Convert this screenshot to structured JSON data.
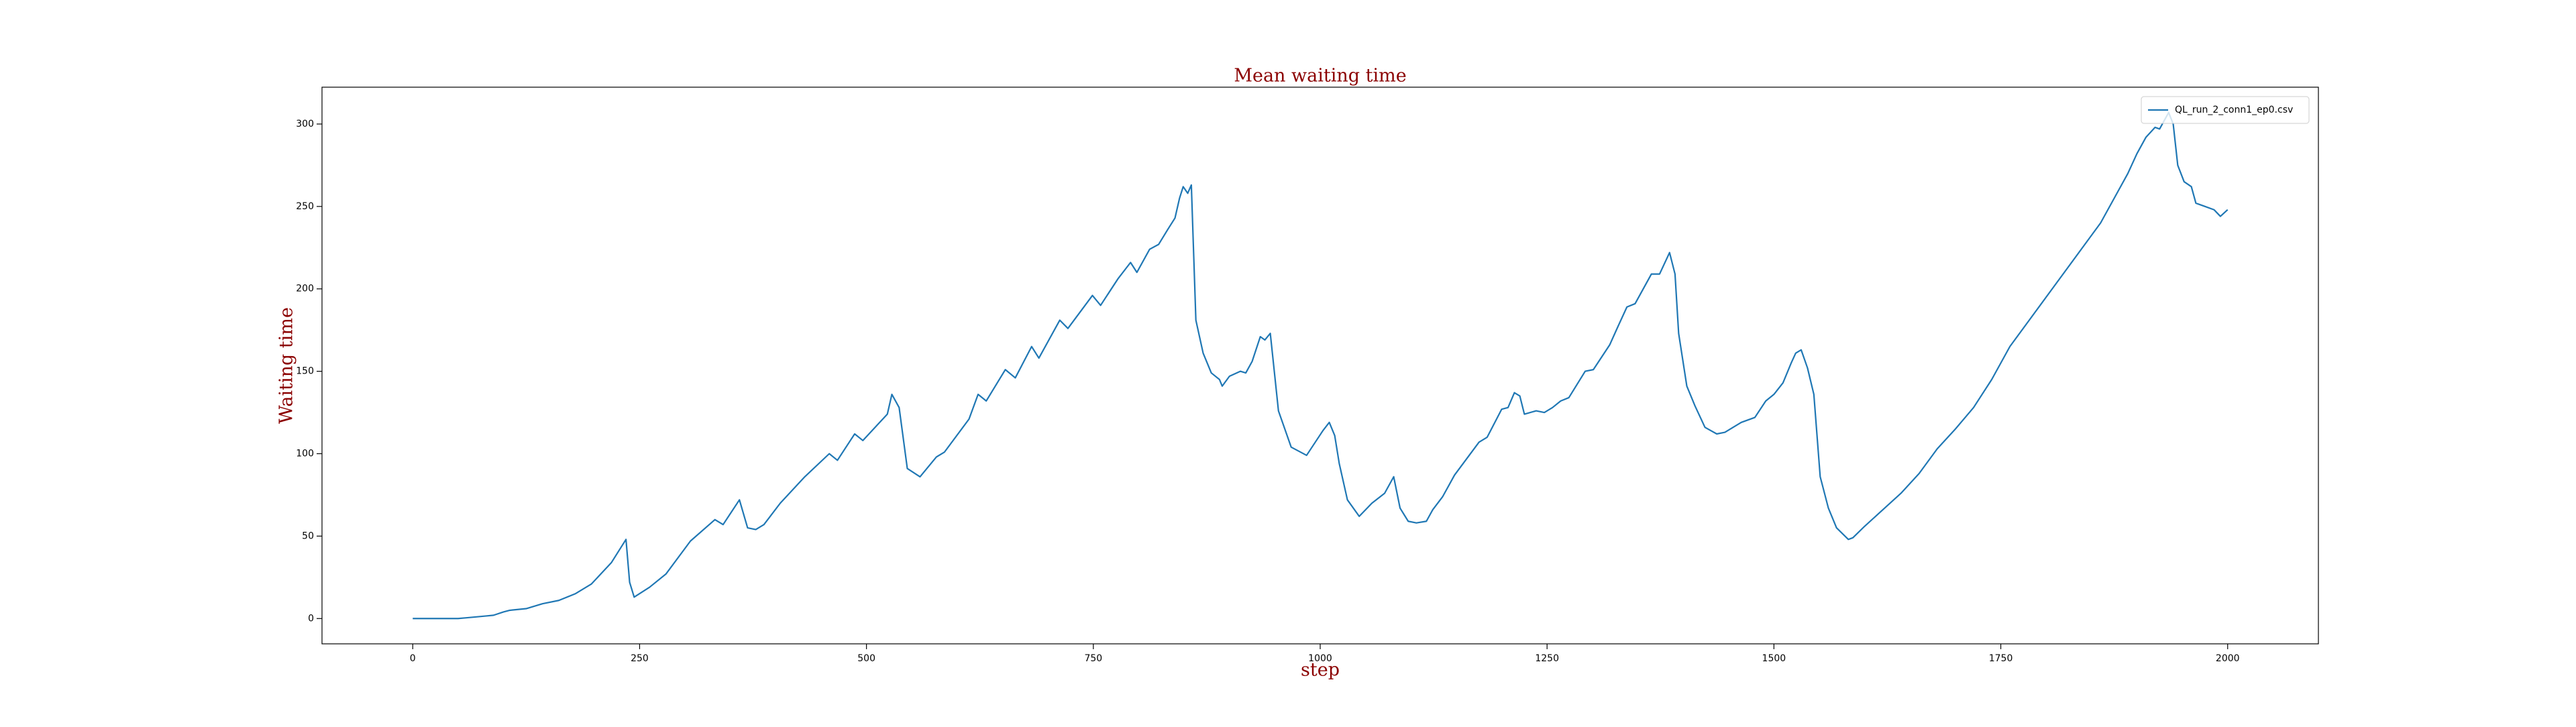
{
  "chart_data": {
    "type": "line",
    "title": "Mean waiting time",
    "x_label": "step",
    "y_label": "Waiting time",
    "x": [
      0,
      50,
      60,
      80,
      89,
      100,
      107,
      125,
      143,
      161,
      179,
      197,
      219,
      235,
      239,
      244,
      261,
      279,
      306,
      333,
      342,
      360,
      369,
      378,
      387,
      405,
      432,
      459,
      468,
      487,
      496,
      523,
      528,
      536,
      545,
      559,
      577,
      586,
      613,
      623,
      632,
      653,
      664,
      682,
      690,
      713,
      722,
      749,
      758,
      777,
      791,
      798,
      812,
      822,
      832,
      840,
      845,
      849,
      854,
      858,
      863,
      871,
      880,
      889,
      892,
      900,
      912,
      918,
      925,
      934,
      939,
      945,
      954,
      968,
      985,
      1003,
      1010,
      1016,
      1021,
      1030,
      1043,
      1057,
      1071,
      1081,
      1088,
      1097,
      1106,
      1117,
      1124,
      1135,
      1148,
      1175,
      1184,
      1200,
      1207,
      1214,
      1220,
      1225,
      1238,
      1247,
      1256,
      1265,
      1274,
      1292,
      1301,
      1319,
      1328,
      1338,
      1347,
      1365,
      1374,
      1385,
      1391,
      1395,
      1404,
      1413,
      1424,
      1437,
      1446,
      1464,
      1479,
      1491,
      1500,
      1510,
      1519,
      1524,
      1530,
      1537,
      1544,
      1551,
      1560,
      1569,
      1582,
      1587,
      1600,
      1620,
      1640,
      1660,
      1680,
      1700,
      1720,
      1740,
      1760,
      1780,
      1800,
      1820,
      1840,
      1860,
      1880,
      1890,
      1900,
      1910,
      1920,
      1925,
      1935,
      1940,
      1945,
      1952,
      1960,
      1965,
      1975,
      1985,
      1992,
      2000
    ],
    "series": [
      {
        "name": "QL_run_2_conn1_ep0.csv",
        "color": "#1f77b4",
        "values": [
          0,
          0,
          0.5,
          1.5,
          2,
          4,
          5,
          6,
          9,
          11,
          15,
          21,
          34,
          48,
          22,
          13,
          19,
          27,
          47,
          60,
          57,
          72,
          55,
          54,
          57,
          70,
          86,
          100,
          96,
          112,
          108,
          124,
          136,
          128,
          91,
          86,
          98,
          101,
          121,
          136,
          132,
          151,
          146,
          165,
          158,
          181,
          176,
          196,
          190,
          206,
          216,
          210,
          224,
          227,
          236,
          243,
          255,
          262,
          258,
          263,
          181,
          161,
          149,
          145,
          141,
          147,
          150,
          149,
          156,
          171,
          169,
          173,
          126,
          104,
          99,
          114,
          119,
          111,
          94,
          72,
          62,
          70,
          76,
          86,
          67,
          59,
          58,
          59,
          66,
          74,
          87,
          107,
          110,
          127,
          128,
          137,
          135,
          124,
          126,
          125,
          128,
          132,
          134,
          150,
          151,
          166,
          177,
          189,
          191,
          209,
          209,
          222,
          209,
          173,
          141,
          129,
          116,
          112,
          113,
          119,
          122,
          132,
          136,
          143,
          155,
          161,
          163,
          152,
          136,
          86,
          67,
          55,
          48,
          49,
          56,
          66,
          76,
          88,
          103,
          115,
          128,
          145,
          165,
          180,
          195,
          210,
          225,
          240,
          260,
          270,
          282,
          292,
          298,
          297,
          307,
          300,
          275,
          265,
          262,
          252,
          250,
          248,
          244,
          248
        ]
      }
    ],
    "xlim": [
      -100,
      2100
    ],
    "ylim": [
      -15.35,
      322.35
    ],
    "xticks": [
      0,
      250,
      500,
      750,
      1000,
      1250,
      1500,
      1750,
      2000
    ],
    "yticks": [
      0,
      50,
      100,
      150,
      200,
      250,
      300
    ],
    "grid": false,
    "legend": "upper right"
  }
}
